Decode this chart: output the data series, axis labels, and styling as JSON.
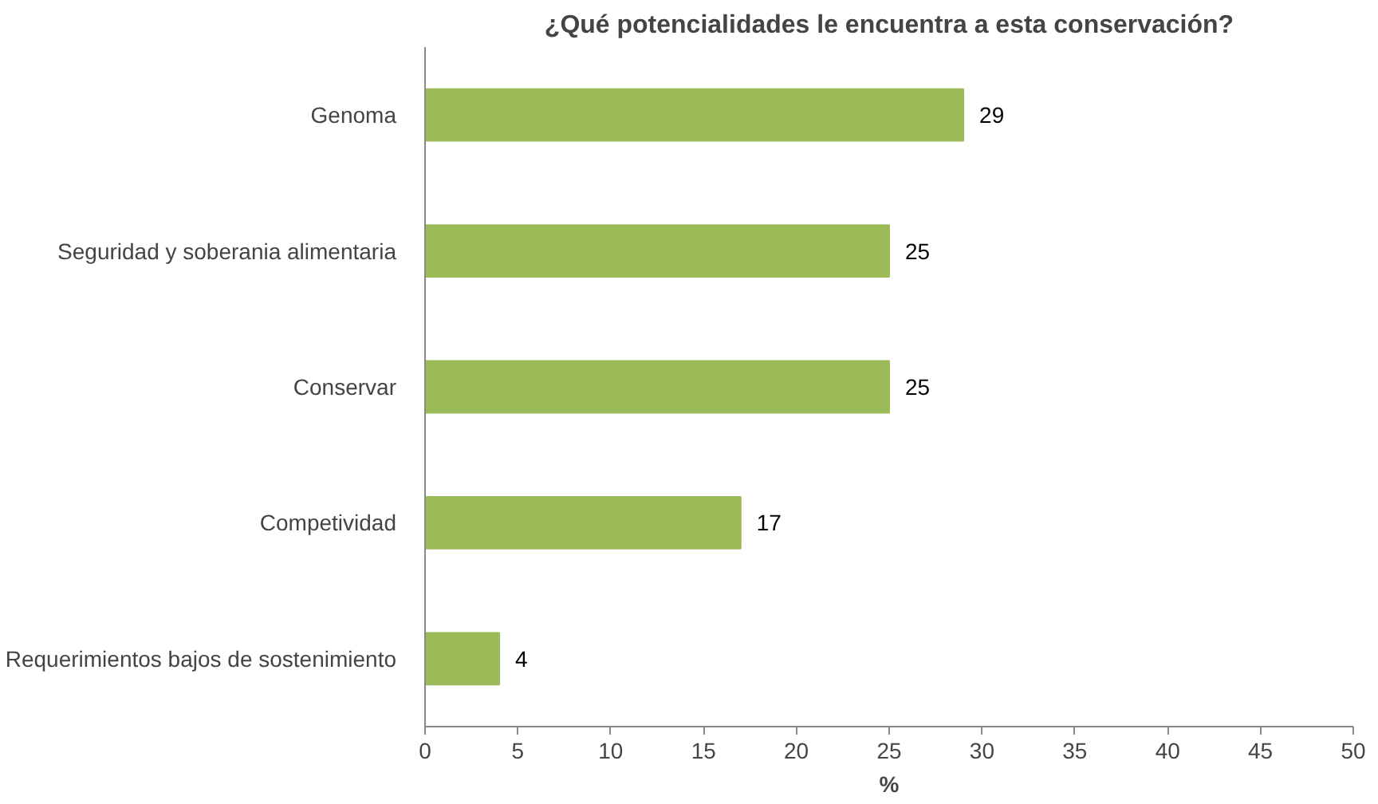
{
  "chart_data": {
    "type": "bar",
    "orientation": "horizontal",
    "title": "¿Qué potencialidades le encuentra a esta conservación?",
    "xlabel": "%",
    "categories": [
      "Genoma",
      "Seguridad y soberania alimentaria",
      "Conservar",
      "Competividad",
      "Requerimientos bajos de sostenimiento"
    ],
    "values": [
      29,
      25,
      25,
      17,
      4
    ],
    "color": "#9bbb59",
    "xlim": [
      0,
      50
    ],
    "xticks": [
      0,
      5,
      10,
      15,
      20,
      25,
      30,
      35,
      40,
      45,
      50
    ],
    "data_labels": true,
    "grid": false
  }
}
